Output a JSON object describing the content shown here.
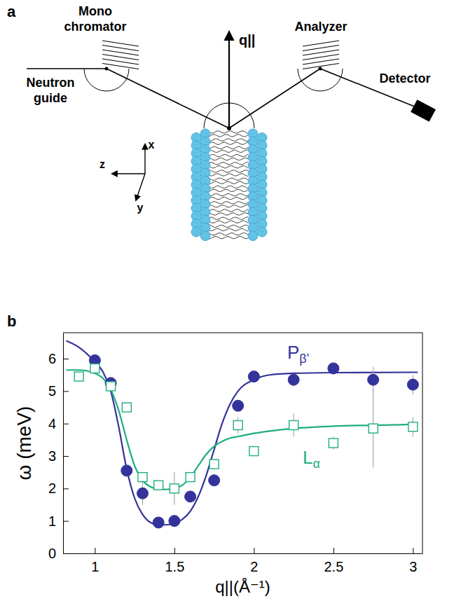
{
  "panels": [
    "a",
    "b"
  ],
  "diagram": {
    "neutron_guide": "Neutron guide",
    "monochromator": "Mono chromator",
    "analyzer": "Analyzer",
    "detector": "Detector",
    "q_label": "q||",
    "axes": [
      "x",
      "y",
      "z"
    ]
  },
  "chart_data": {
    "type": "scatter",
    "xlabel": "q||(Å⁻¹)",
    "ylabel": "ω (meV)",
    "xlim": [
      0.8,
      3.06
    ],
    "ylim": [
      0,
      6.8
    ],
    "xticks": [
      1,
      1.5,
      2,
      2.5,
      3
    ],
    "yticks": [
      0,
      1,
      2,
      3,
      4,
      5,
      6
    ],
    "series": [
      {
        "name": "Pβ'",
        "color": "#33339b",
        "marker": "circle",
        "x": [
          1.0,
          1.1,
          1.2,
          1.3,
          1.4,
          1.5,
          1.6,
          1.75,
          1.9,
          2.0,
          2.25,
          2.5,
          2.75,
          3.0
        ],
        "values": [
          5.95,
          5.25,
          2.55,
          1.85,
          0.95,
          1.0,
          1.75,
          2.25,
          4.55,
          5.45,
          5.35,
          5.7,
          5.35,
          5.2
        ],
        "error": [
          0.1,
          0.1,
          0.1,
          0.35,
          0.1,
          0.1,
          0.1,
          0.1,
          0.15,
          0.1,
          0.2,
          0.1,
          0.4,
          0.3
        ],
        "fit": {
          "x": [
            0.82,
            0.9,
            1.0,
            1.05,
            1.1,
            1.15,
            1.2,
            1.25,
            1.3,
            1.35,
            1.4,
            1.45,
            1.5,
            1.55,
            1.6,
            1.65,
            1.7,
            1.75,
            1.8,
            1.85,
            1.9,
            2.0,
            2.1,
            2.25,
            2.5,
            3.0,
            3.03
          ],
          "values": [
            6.55,
            6.35,
            5.9,
            5.6,
            5.0,
            3.9,
            2.6,
            1.7,
            1.2,
            0.95,
            0.88,
            0.88,
            0.93,
            1.05,
            1.3,
            1.75,
            2.4,
            3.2,
            4.0,
            4.6,
            5.0,
            5.35,
            5.5,
            5.55,
            5.57,
            5.58,
            5.58
          ]
        }
      },
      {
        "name": "Lα",
        "color": "#1fae7e",
        "marker": "square-open",
        "x": [
          0.9,
          1.0,
          1.1,
          1.2,
          1.3,
          1.4,
          1.5,
          1.6,
          1.75,
          1.9,
          2.0,
          2.25,
          2.5,
          2.75,
          3.0
        ],
        "values": [
          5.45,
          5.7,
          5.15,
          4.5,
          2.35,
          2.1,
          2.0,
          2.35,
          2.75,
          3.95,
          3.15,
          3.95,
          3.4,
          3.85,
          3.9
        ],
        "error": [
          0.1,
          0.1,
          0.1,
          0.1,
          0.1,
          0.1,
          0.5,
          0.1,
          0.1,
          0.25,
          0.1,
          0.35,
          0.2,
          1.2,
          0.3
        ],
        "fit": {
          "x": [
            0.82,
            0.9,
            1.0,
            1.05,
            1.1,
            1.15,
            1.2,
            1.25,
            1.3,
            1.35,
            1.4,
            1.45,
            1.5,
            1.55,
            1.6,
            1.65,
            1.7,
            1.75,
            1.8,
            1.85,
            1.9,
            2.0,
            2.1,
            2.25,
            2.5,
            3.0,
            3.03
          ],
          "values": [
            5.65,
            5.65,
            5.55,
            5.4,
            5.05,
            4.4,
            3.5,
            2.7,
            2.25,
            2.05,
            1.98,
            1.97,
            2.0,
            2.1,
            2.35,
            2.7,
            3.05,
            3.3,
            3.45,
            3.55,
            3.6,
            3.7,
            3.77,
            3.85,
            3.92,
            3.98,
            3.99
          ]
        }
      }
    ]
  }
}
